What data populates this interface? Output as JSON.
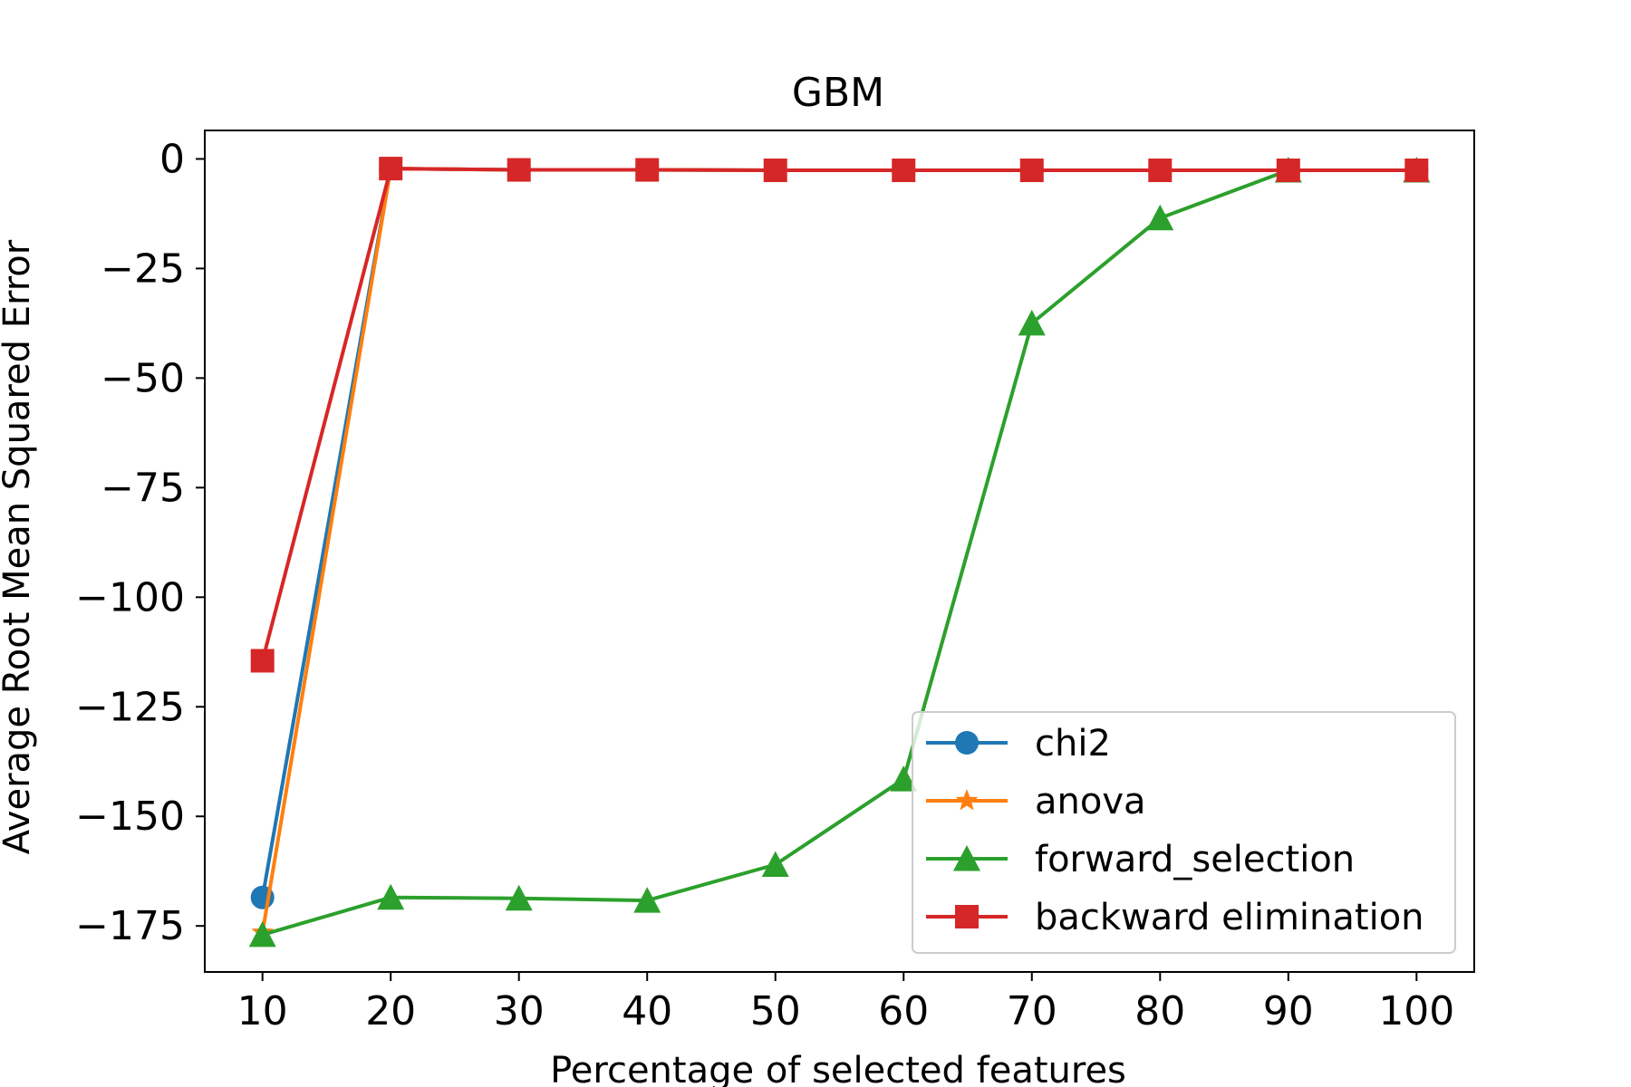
{
  "chart_data": {
    "type": "line",
    "title": "GBM",
    "xlabel": "Percentage of selected features",
    "ylabel": "Average Root Mean Squared Error",
    "x": [
      10,
      20,
      30,
      40,
      50,
      60,
      70,
      80,
      90,
      100
    ],
    "xticks": [
      10,
      20,
      30,
      40,
      50,
      60,
      70,
      80,
      90,
      100
    ],
    "yticks": [
      0,
      -25,
      -50,
      -75,
      -100,
      -125,
      -150,
      -175
    ],
    "xlim": [
      5.5,
      104.5
    ],
    "ylim": [
      -185.5,
      6.5
    ],
    "grid": false,
    "legend_position": "lower-right",
    "series": [
      {
        "name": "chi2",
        "color": "#1f77b4",
        "marker": "circle",
        "values": [
          -168.5,
          -2.2,
          -2.5,
          -2.5,
          -2.6,
          -2.6,
          -2.6,
          -2.6,
          -2.6,
          -2.6
        ]
      },
      {
        "name": "anova",
        "color": "#ff7f0e",
        "marker": "star",
        "values": [
          -176.5,
          -2.2,
          -2.5,
          -2.5,
          -2.6,
          -2.6,
          -2.6,
          -2.6,
          -2.6,
          -2.6
        ]
      },
      {
        "name": "forward_selection",
        "color": "#2ca02c",
        "marker": "triangle",
        "values": [
          -177.0,
          -168.5,
          -168.7,
          -169.2,
          -161.0,
          -141.5,
          -37.5,
          -13.5,
          -2.6,
          -2.6
        ]
      },
      {
        "name": "backward elimination",
        "color": "#d62728",
        "marker": "square",
        "values": [
          -114.5,
          -2.2,
          -2.5,
          -2.5,
          -2.6,
          -2.6,
          -2.6,
          -2.6,
          -2.6,
          -2.6
        ]
      }
    ]
  }
}
